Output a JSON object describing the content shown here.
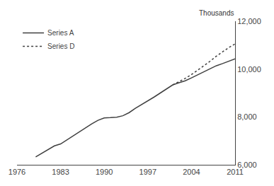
{
  "chart_data": {
    "type": "line",
    "ylabel": "Thousands",
    "xlim": [
      1976,
      2011
    ],
    "xticks": [
      1976,
      1983,
      1990,
      1997,
      2004,
      2011
    ],
    "ylim": [
      6000,
      12000
    ],
    "yticks": [
      {
        "value": 6000,
        "label": "6,000"
      },
      {
        "value": 8000,
        "label": "8,000"
      },
      {
        "value": 10000,
        "label": "10,000"
      },
      {
        "value": 12000,
        "label": "12,000"
      }
    ],
    "grid": false,
    "legend": "upper left",
    "series": [
      {
        "name": "Series A",
        "color": "#404040",
        "line_style": "solid",
        "x": [
          1979,
          1980,
          1981,
          1982,
          1983,
          1984,
          1985,
          1986,
          1987,
          1988,
          1989,
          1990,
          1991,
          1992,
          1993,
          1994,
          1995,
          1996,
          1997,
          1998,
          1999,
          2000,
          2001,
          2002,
          2003,
          2004,
          2005,
          2006,
          2007,
          2008,
          2009,
          2010,
          2011
        ],
        "values": [
          6330,
          6490,
          6650,
          6790,
          6870,
          7040,
          7200,
          7370,
          7540,
          7710,
          7860,
          7960,
          7970,
          7990,
          8050,
          8180,
          8360,
          8510,
          8660,
          8830,
          9000,
          9180,
          9340,
          9430,
          9510,
          9630,
          9760,
          9900,
          10020,
          10140,
          10230,
          10330,
          10430
        ]
      },
      {
        "name": "Series D",
        "color": "#404040",
        "line_style": "dotted",
        "x": [
          2001,
          2002,
          2003,
          2004,
          2005,
          2006,
          2007,
          2008,
          2009,
          2010,
          2011
        ],
        "values": [
          9340,
          9470,
          9610,
          9770,
          9950,
          10130,
          10330,
          10540,
          10730,
          10900,
          11050
        ]
      }
    ]
  }
}
